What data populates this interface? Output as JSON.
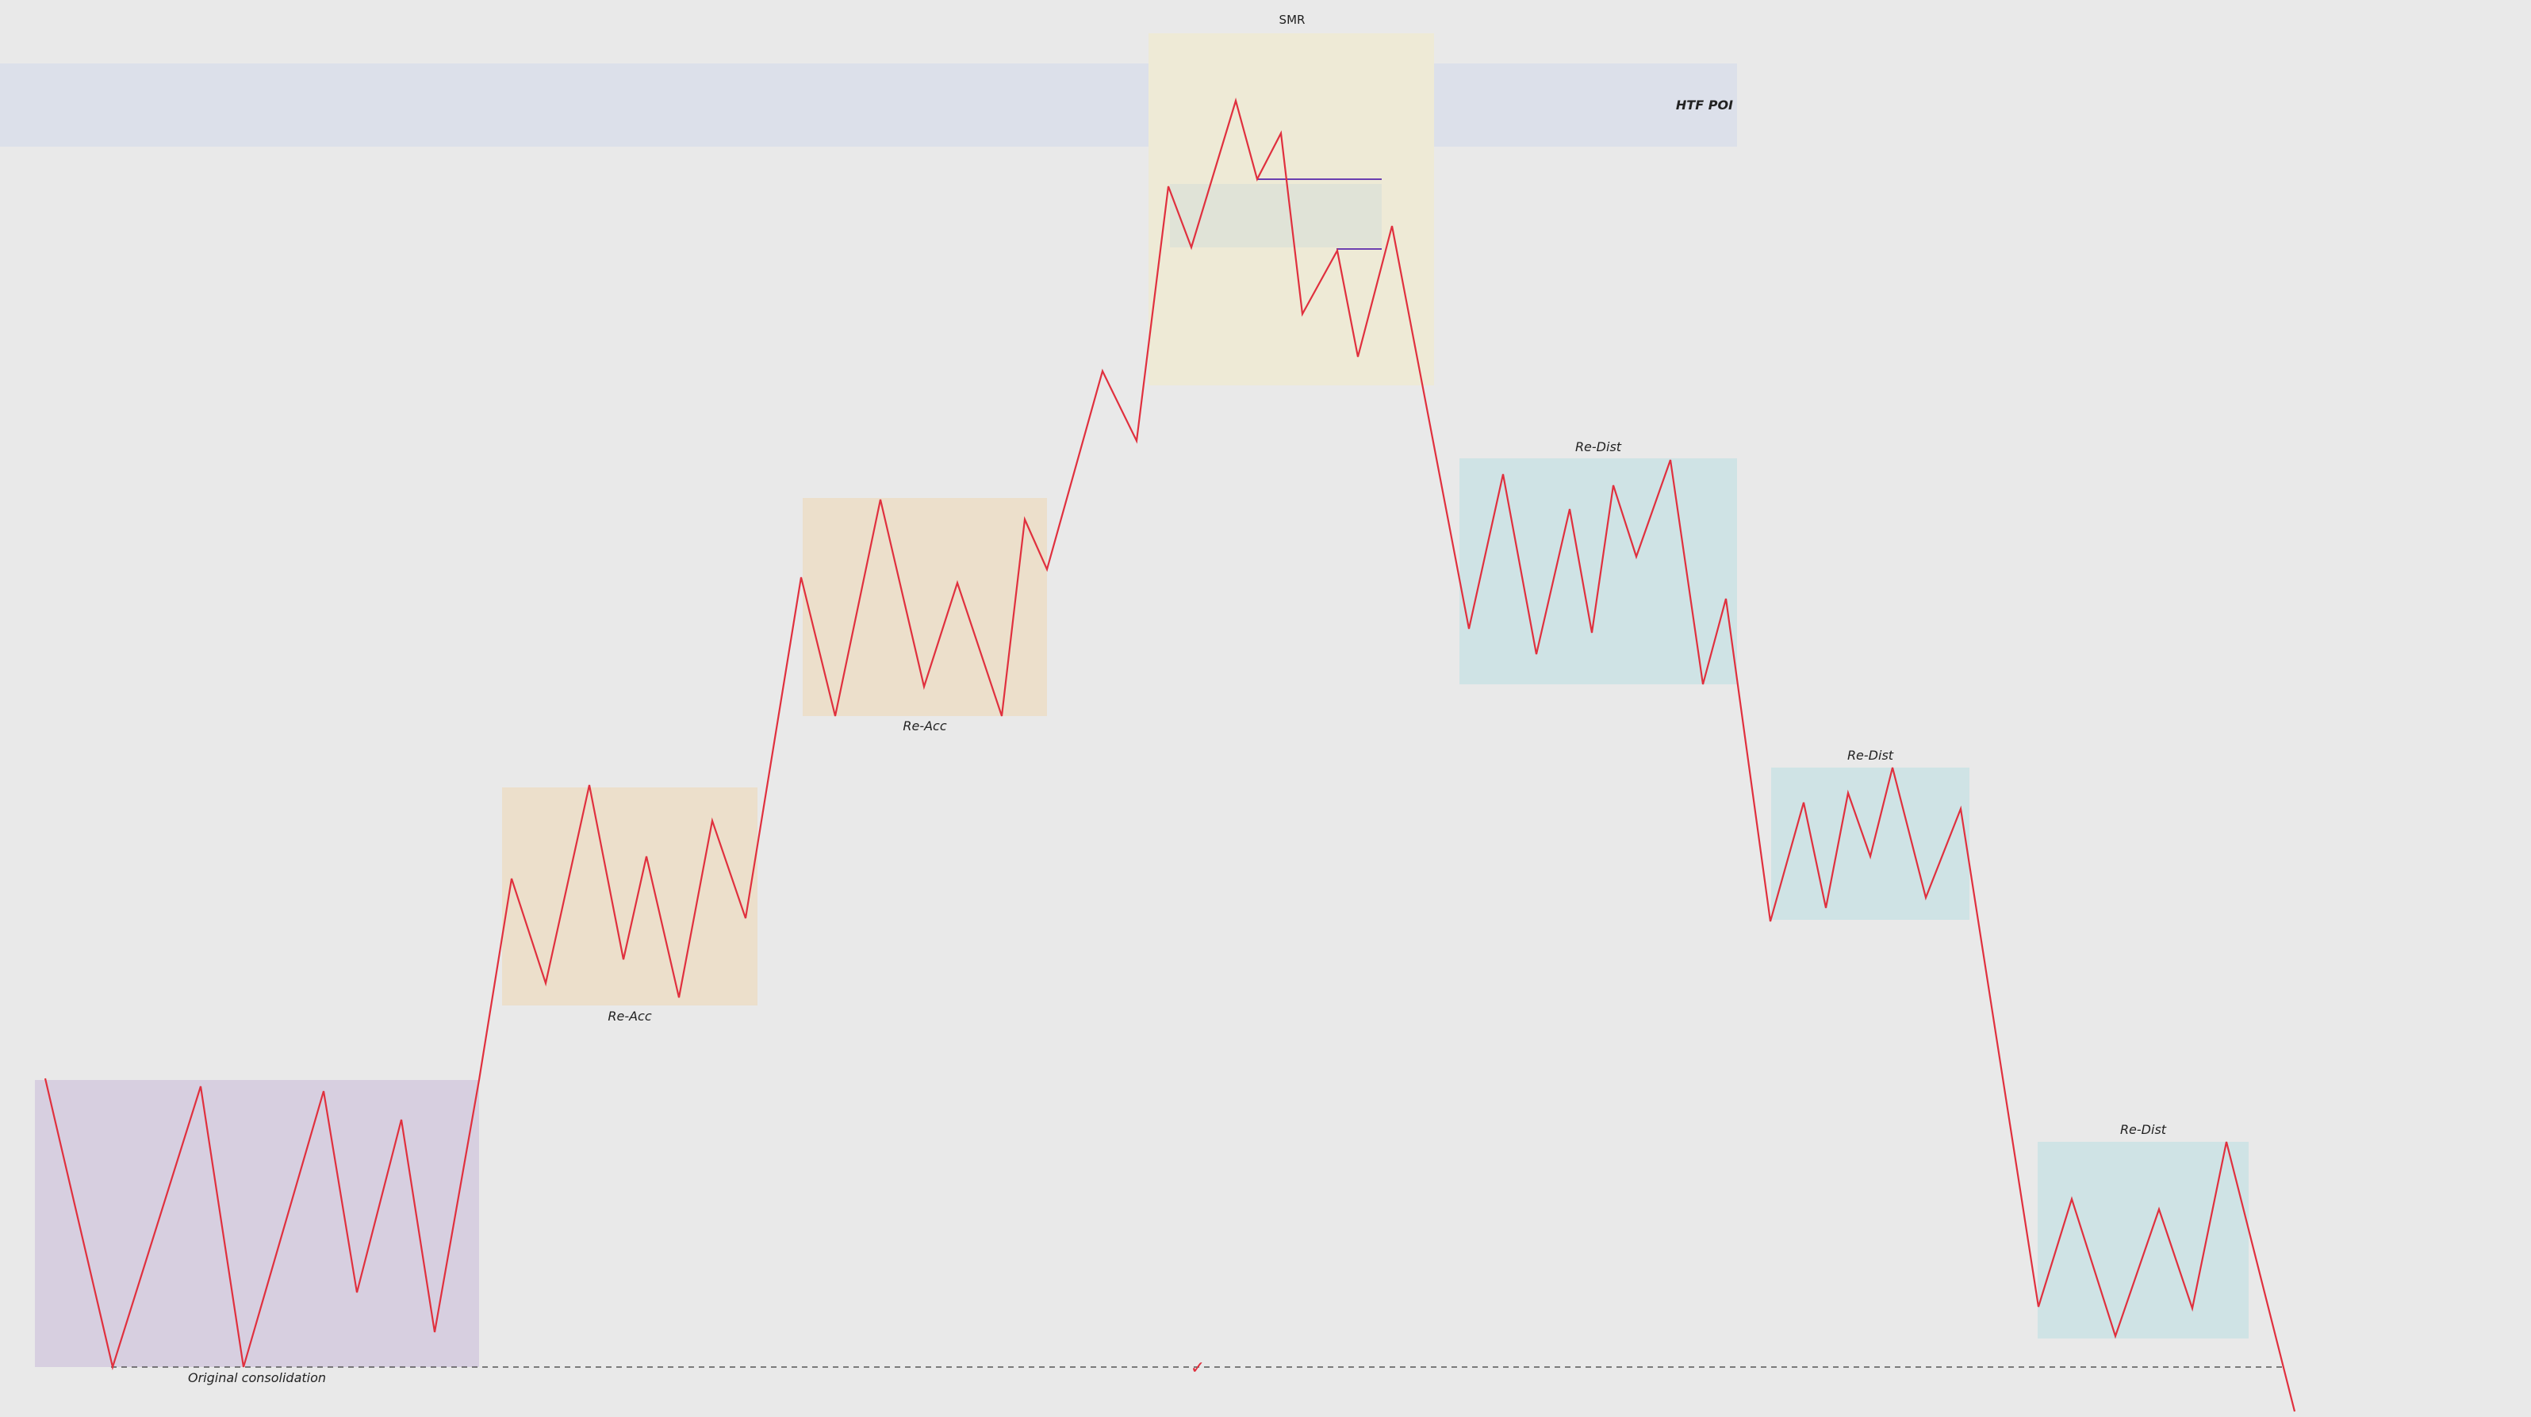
{
  "colors": {
    "background": "#e9e9e9",
    "price_line": "#e0303e",
    "htf_poi_zone": "#dce0ea",
    "smr_zone": "#eeead6",
    "smr_inner_zone": "#e0e3d7",
    "consolidation_zone": "#d7cfe0",
    "re_acc_zone": "#ecdfcb",
    "re_dist_zone": "#cfe3e5",
    "level_line": "#6a3fb0",
    "dashed_line": "#555555",
    "check": "#e0303e"
  },
  "labels": {
    "htf_poi": "HTF POI",
    "smr": "SMR",
    "original_consolidation": "Original consolidation",
    "re_acc_1": "Re-Acc",
    "re_acc_2": "Re-Acc",
    "re_dist_1": "Re-Dist",
    "re_dist_2": "Re-Dist",
    "re_dist_3": "Re-Dist",
    "check_mark": "✓"
  },
  "icons": {
    "check_mark": "check-icon"
  }
}
